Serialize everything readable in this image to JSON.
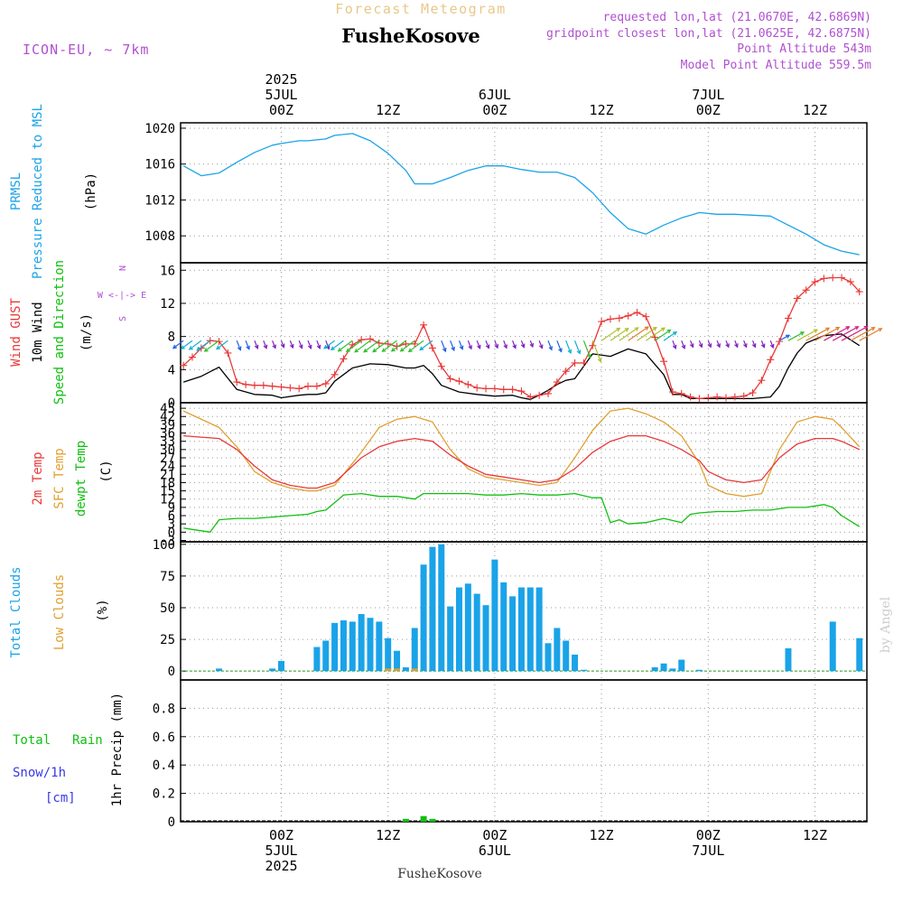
{
  "header": {
    "subtitle": "Forecast Meteogram",
    "location": "FusheKosove",
    "model": "ICON-EU, ~ 7km",
    "info_lines": [
      "requested lon,lat (21.0670E, 42.6869N)",
      "gridpoint closest lon,lat (21.0625E, 42.6875N)",
      "Point Altitude 543m",
      "Model Point Altitude 559.5m"
    ],
    "footer_location": "FusheKosove",
    "watermark": "by Angel"
  },
  "time_axis": {
    "top_ticks": [
      {
        "h": 0,
        "lines": [
          "2025",
          "5JUL",
          "00Z"
        ]
      },
      {
        "h": 12,
        "lines": [
          "12Z"
        ]
      },
      {
        "h": 24,
        "lines": [
          "6JUL",
          "00Z"
        ]
      },
      {
        "h": 36,
        "lines": [
          "12Z"
        ]
      },
      {
        "h": 48,
        "lines": [
          "7JUL",
          "00Z"
        ]
      },
      {
        "h": 60,
        "lines": [
          "12Z"
        ]
      }
    ],
    "bottom_ticks": [
      {
        "h": 0,
        "lines": [
          "00Z",
          "5JUL",
          "2025"
        ]
      },
      {
        "h": 12,
        "lines": [
          "12Z"
        ]
      },
      {
        "h": 24,
        "lines": [
          "00Z",
          "6JUL"
        ]
      },
      {
        "h": 36,
        "lines": [
          "12Z"
        ]
      },
      {
        "h": 48,
        "lines": [
          "00Z",
          "7JUL"
        ]
      },
      {
        "h": 60,
        "lines": [
          "12Z"
        ]
      }
    ]
  },
  "colors": {
    "pressure": "#1aa3e8",
    "gust": "#e83838",
    "wind": "#000000",
    "t2m": "#e83838",
    "sfc": "#e0a030",
    "dewpt": "#10c010",
    "total_clouds": "#1aa3e8",
    "low_clouds": "#e0a030",
    "rain": "#10c010",
    "snow": "#3838e8",
    "purple": "#b050d0"
  },
  "panel_labels": {
    "pressure": [
      "PRMSL",
      "Pressure Reduced to MSL",
      "(hPa)"
    ],
    "wind": [
      "Wind GUST",
      "10m Wind",
      "Speed and Direction",
      "(m/s)"
    ],
    "compass": [
      "N",
      "W <-|-> E",
      "S"
    ],
    "temp": [
      "2m Temp",
      "SFC Temp",
      "dewpt Temp",
      "(C)"
    ],
    "clouds": [
      "Total Clouds",
      "Low Clouds",
      "(%)"
    ],
    "precip": [
      "Total",
      "Rain",
      "Snow/1h",
      "[cm]",
      "1hr Precip (mm)"
    ]
  },
  "chart_data": [
    {
      "type": "line",
      "title": "PRMSL Pressure Reduced to MSL",
      "ylabel": "(hPa)",
      "ylim": [
        1005,
        1020.6
      ],
      "yticks": [
        1008,
        1012,
        1016,
        1020
      ],
      "series": [
        {
          "name": "PRMSL",
          "x": [
            -11,
            -9,
            -7,
            -5,
            -3,
            -1,
            0,
            2,
            3,
            5,
            6,
            8,
            10,
            12,
            14,
            15,
            17,
            19,
            21,
            23,
            25,
            27,
            29,
            31,
            33,
            35,
            37,
            39,
            41,
            43,
            45,
            47,
            49,
            51,
            53,
            55,
            57,
            59,
            61,
            63,
            65
          ],
          "y": [
            1015.8,
            1014.7,
            1015.0,
            1016.2,
            1017.3,
            1018.1,
            1018.3,
            1018.6,
            1018.6,
            1018.8,
            1019.2,
            1019.4,
            1018.6,
            1017.2,
            1015.3,
            1013.8,
            1013.8,
            1014.5,
            1015.3,
            1015.8,
            1015.8,
            1015.4,
            1015.1,
            1015.1,
            1014.5,
            1012.8,
            1010.6,
            1008.8,
            1008.2,
            1009.2,
            1010.0,
            1010.6,
            1010.4,
            1010.4,
            1010.3,
            1010.2,
            1009.2,
            1008.2,
            1007.0,
            1006.3,
            1005.9
          ]
        }
      ]
    },
    {
      "type": "line",
      "title": "Wind GUST / 10m Wind Speed and Direction",
      "ylabel": "(m/s)",
      "ylim": [
        0,
        16
      ],
      "yticks": [
        0,
        4,
        8,
        12,
        16
      ],
      "series": [
        {
          "name": "Wind GUST",
          "x": [
            -11,
            -10,
            -9,
            -8,
            -7,
            -6,
            -5,
            -4,
            -3,
            -2,
            -1,
            0,
            1,
            2,
            3,
            4,
            5,
            6,
            7,
            8,
            9,
            10,
            11,
            12,
            13,
            14,
            15,
            16,
            17,
            18,
            19,
            20,
            21,
            22,
            23,
            24,
            25,
            26,
            27,
            28,
            29,
            30,
            31,
            32,
            33,
            34,
            35,
            36,
            37,
            38,
            39,
            40,
            41,
            42,
            43,
            44,
            45,
            46,
            47,
            48,
            49,
            50,
            51,
            52,
            53,
            54,
            55,
            56,
            57,
            58,
            59,
            60,
            61,
            62,
            63,
            64,
            65
          ],
          "y": [
            4.5,
            5.5,
            6.6,
            7.5,
            7.4,
            6.0,
            2.5,
            2.2,
            2.1,
            2.1,
            2.0,
            1.9,
            1.8,
            1.7,
            2.0,
            2.0,
            2.3,
            3.4,
            5.3,
            7.0,
            7.6,
            7.7,
            7.2,
            7.1,
            6.8,
            7.1,
            7.1,
            9.4,
            6.6,
            4.4,
            2.9,
            2.6,
            2.2,
            1.8,
            1.7,
            1.7,
            1.6,
            1.6,
            1.4,
            0.7,
            0.9,
            1.1,
            2.5,
            3.8,
            4.8,
            4.8,
            6.9,
            9.8,
            10.1,
            10.2,
            10.5,
            10.9,
            10.4,
            7.9,
            5.0,
            1.3,
            1.1,
            0.7,
            0.5,
            0.6,
            0.7,
            0.6,
            0.7,
            0.8,
            1.2,
            2.7,
            5.2,
            7.4,
            10.2,
            12.6,
            13.6,
            14.6,
            15.0,
            15.1,
            15.1,
            14.6,
            13.4
          ]
        },
        {
          "name": "10m Wind",
          "x": [
            -11,
            -9,
            -7,
            -5,
            -3,
            -1,
            0,
            2,
            3,
            4,
            5,
            6,
            8,
            10,
            12,
            14,
            15,
            16,
            17,
            18,
            20,
            22,
            24,
            26,
            27,
            28,
            29,
            30,
            31,
            32,
            33,
            35,
            37,
            39,
            41,
            43,
            44,
            45,
            46,
            47,
            49,
            51,
            53,
            55,
            56,
            57,
            58,
            59,
            61,
            63,
            65
          ],
          "y": [
            2.5,
            3.2,
            4.3,
            1.6,
            1.0,
            0.9,
            0.6,
            0.9,
            1.0,
            1.0,
            1.2,
            2.6,
            4.2,
            4.7,
            4.6,
            4.2,
            4.2,
            4.5,
            3.5,
            2.1,
            1.3,
            1.0,
            0.8,
            0.9,
            0.6,
            0.4,
            0.9,
            1.5,
            2.2,
            2.7,
            2.9,
            5.9,
            5.6,
            6.5,
            5.9,
            3.4,
            1.0,
            1.0,
            0.5,
            0.5,
            0.5,
            0.5,
            0.5,
            0.7,
            2.0,
            4.2,
            6.0,
            7.2,
            8.1,
            8.3,
            6.9
          ]
        }
      ]
    },
    {
      "type": "line",
      "title": "2m Temp / SFC Temp / dewpt Temp",
      "ylabel": "(C)",
      "ylim": [
        -3.5,
        47
      ],
      "yticks": [
        -3,
        0,
        3,
        6,
        9,
        12,
        15,
        18,
        21,
        24,
        27,
        30,
        33,
        36,
        39,
        42,
        45
      ],
      "series": [
        {
          "name": "2m Temp",
          "x": [
            -11,
            -7,
            -5,
            -3,
            -1,
            1,
            3,
            4,
            6,
            9,
            11,
            13,
            15,
            17,
            19,
            21,
            23,
            25,
            27,
            29,
            31,
            33,
            35,
            37,
            39,
            41,
            43,
            45,
            47,
            48,
            50,
            52,
            54,
            56,
            58,
            60,
            62,
            63,
            65
          ],
          "y": [
            35,
            34,
            30,
            24,
            19,
            17,
            16,
            16,
            18,
            27,
            31,
            33,
            34,
            33,
            28,
            24,
            21,
            20,
            19,
            18,
            19,
            23,
            29,
            33,
            35,
            35,
            33,
            30,
            26,
            22,
            19,
            18,
            19,
            27,
            32,
            34,
            34,
            33,
            30
          ]
        },
        {
          "name": "SFC Temp",
          "x": [
            -11,
            -7,
            -5,
            -3,
            -1,
            1,
            3,
            4,
            6,
            9,
            11,
            13,
            15,
            17,
            19,
            21,
            23,
            25,
            27,
            29,
            31,
            33,
            35,
            37,
            39,
            41,
            43,
            45,
            47,
            48,
            50,
            52,
            54,
            56,
            58,
            60,
            62,
            63,
            65
          ],
          "y": [
            44,
            38,
            31,
            22,
            18,
            16,
            15,
            15,
            17,
            29,
            38,
            41,
            42,
            40,
            30,
            23,
            20,
            19,
            18,
            17,
            18,
            27,
            37,
            44,
            45,
            43,
            40,
            35,
            25,
            17,
            14,
            13,
            14,
            30,
            40,
            42,
            41,
            38,
            31
          ]
        },
        {
          "name": "dewpt Temp",
          "x": [
            -11,
            -9,
            -8,
            -7,
            -5,
            -3,
            -1,
            1,
            3,
            4,
            5,
            7,
            9,
            11,
            13,
            15,
            16,
            17,
            19,
            21,
            23,
            25,
            27,
            29,
            31,
            33,
            35,
            36,
            37,
            38,
            39,
            41,
            43,
            45,
            46,
            47,
            49,
            51,
            53,
            55,
            57,
            59,
            61,
            62,
            63,
            65
          ],
          "y": [
            1.5,
            0.5,
            0,
            4.5,
            5.0,
            5.0,
            5.5,
            6.0,
            6.5,
            7.5,
            8.0,
            13.5,
            14.0,
            13.0,
            13.0,
            12.0,
            14.0,
            14.0,
            14.0,
            14.0,
            13.5,
            13.5,
            14.0,
            13.5,
            13.5,
            14.0,
            12.5,
            12.5,
            3.5,
            4.5,
            3.0,
            3.5,
            5.0,
            3.5,
            6.5,
            7.0,
            7.5,
            7.5,
            8.0,
            8.0,
            9.0,
            9.0,
            10.0,
            9.0,
            6.0,
            2.0
          ]
        }
      ]
    },
    {
      "type": "bar",
      "title": "Total Clouds / Low Clouds",
      "ylabel": "(%)",
      "ylim": [
        -7,
        102
      ],
      "yticks": [
        0,
        25,
        50,
        75,
        100
      ],
      "series": [
        {
          "name": "Total Clouds",
          "x": [
            -7,
            -1,
            0,
            4,
            5,
            6,
            7,
            8,
            9,
            10,
            11,
            12,
            13,
            14,
            15,
            16,
            17,
            18,
            19,
            20,
            21,
            22,
            23,
            24,
            25,
            26,
            27,
            28,
            29,
            30,
            31,
            32,
            33,
            34,
            42,
            43,
            44,
            45,
            47,
            57,
            62,
            65
          ],
          "y": [
            2,
            2,
            8,
            19,
            24,
            38,
            40,
            39,
            45,
            42,
            39,
            26,
            16,
            3,
            34,
            84,
            98,
            100,
            51,
            66,
            69,
            61,
            52,
            88,
            70,
            59,
            66,
            66,
            66,
            22,
            34,
            24,
            13,
            1,
            3,
            6,
            2,
            9,
            1,
            18,
            39,
            26
          ]
        },
        {
          "name": "Low Clouds",
          "x": [
            12,
            13,
            15
          ],
          "y": [
            2,
            2,
            2
          ]
        }
      ]
    },
    {
      "type": "bar",
      "title": "1hr Precip (mm)",
      "ylabel": "1hr Precip (mm)",
      "ylim": [
        0,
        1
      ],
      "yticks": [
        0,
        0.2,
        0.4,
        0.6,
        0.8
      ],
      "series": [
        {
          "name": "Total Rain",
          "x": [
            14,
            16,
            17
          ],
          "y": [
            0.02,
            0.04,
            0.02
          ]
        }
      ]
    }
  ]
}
